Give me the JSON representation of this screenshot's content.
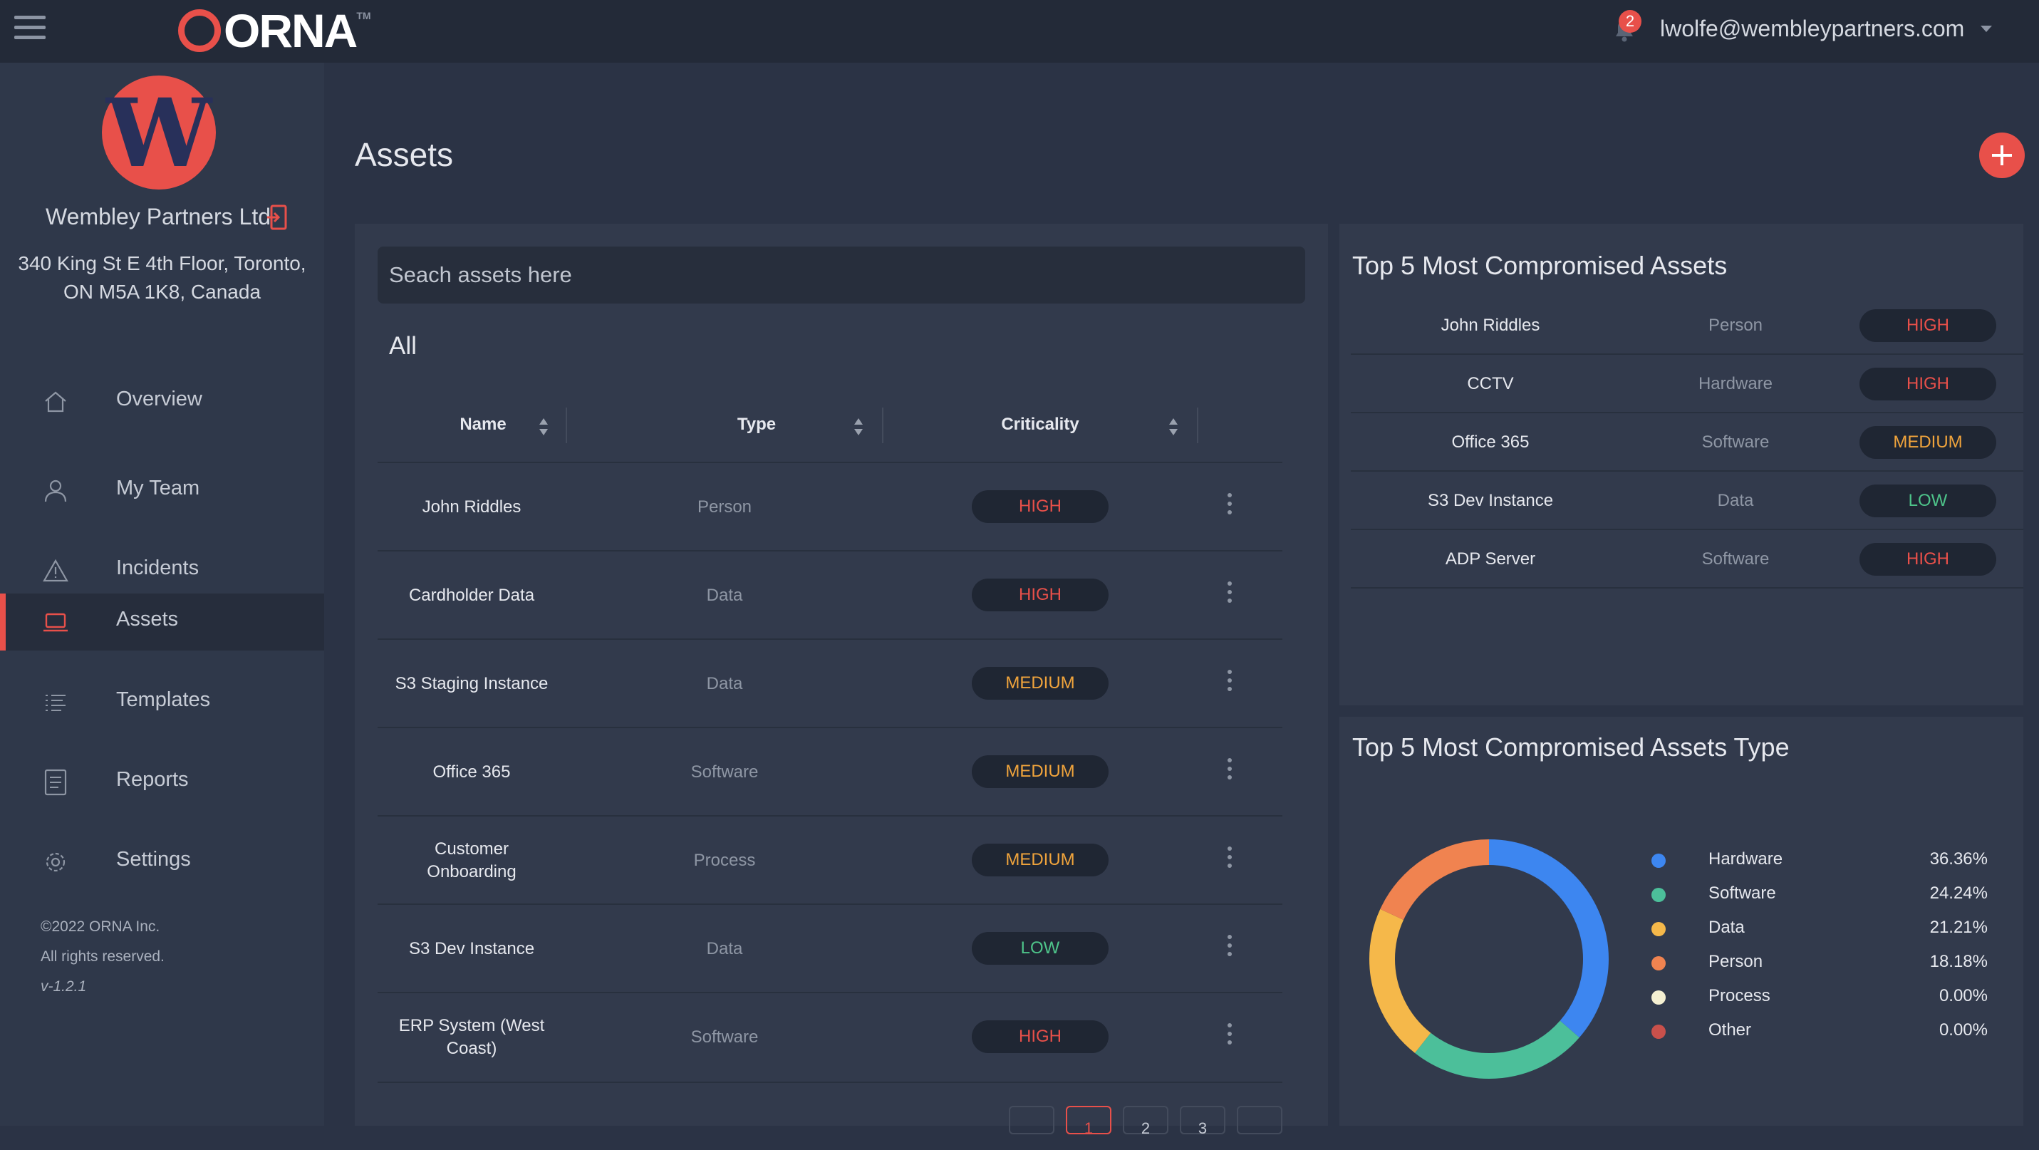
{
  "header": {
    "logo_text": "ORNA",
    "logo_tm": "TM",
    "notification_count": "2",
    "user_email": "lwolfe@wembleypartners.com"
  },
  "sidebar": {
    "company_initial": "W",
    "company_name": "Wembley Partners Ltd",
    "address_line1": "340 King St E 4th Floor, Toronto,",
    "address_line2": "ON M5A 1K8, Canada",
    "items": [
      {
        "label": "Overview",
        "icon": "home-icon"
      },
      {
        "label": "My Team",
        "icon": "user-icon"
      },
      {
        "label": "Incidents",
        "icon": "warning-icon"
      },
      {
        "label": "Assets",
        "icon": "laptop-icon",
        "active": true
      },
      {
        "label": "Templates",
        "icon": "list-icon"
      },
      {
        "label": "Reports",
        "icon": "document-icon"
      },
      {
        "label": "Settings",
        "icon": "gear-icon"
      }
    ],
    "copyright": "©2022 ORNA Inc.",
    "rights": "All rights reserved.",
    "version": "v-1.2.1"
  },
  "main": {
    "title": "Assets",
    "search_placeholder": "Seach assets here",
    "filter_label": "All",
    "columns": [
      "Name",
      "Type",
      "Criticality"
    ],
    "rows": [
      {
        "name": "John Riddles",
        "type": "Person",
        "criticality": "HIGH"
      },
      {
        "name": "Cardholder Data",
        "type": "Data",
        "criticality": "HIGH"
      },
      {
        "name": "S3 Staging Instance",
        "type": "Data",
        "criticality": "MEDIUM"
      },
      {
        "name": "Office 365",
        "type": "Software",
        "criticality": "MEDIUM"
      },
      {
        "name": "Customer Onboarding",
        "type": "Process",
        "criticality": "MEDIUM"
      },
      {
        "name": "S3 Dev Instance",
        "type": "Data",
        "criticality": "LOW"
      },
      {
        "name": "ERP System (West Coast)",
        "type": "Software",
        "criticality": "HIGH"
      }
    ],
    "pagination": [
      "1",
      "2",
      "3"
    ]
  },
  "top5_assets": {
    "title": "Top 5 Most Compromised Assets",
    "rows": [
      {
        "name": "John Riddles",
        "type": "Person",
        "criticality": "HIGH"
      },
      {
        "name": "CCTV",
        "type": "Hardware",
        "criticality": "HIGH"
      },
      {
        "name": "Office 365",
        "type": "Software",
        "criticality": "MEDIUM"
      },
      {
        "name": "S3 Dev Instance",
        "type": "Data",
        "criticality": "LOW"
      },
      {
        "name": "ADP Server",
        "type": "Software",
        "criticality": "HIGH"
      }
    ]
  },
  "top5_types": {
    "title": "Top 5 Most Compromised Assets Type"
  },
  "colors": {
    "accent": "#e8504a",
    "high": "#e8504a",
    "medium": "#f0a43c",
    "low": "#4ec48a"
  },
  "chart_data": {
    "type": "pie",
    "donut": true,
    "categories": [
      "Hardware",
      "Software",
      "Data",
      "Person",
      "Process",
      "Other"
    ],
    "values": [
      36.36,
      24.24,
      21.21,
      18.18,
      0.0,
      0.0
    ],
    "labels": [
      "36.36%",
      "24.24%",
      "21.21%",
      "18.18%",
      "0.00%",
      "0.00%"
    ],
    "colors": [
      "#3d86f0",
      "#4cbf9a",
      "#f5b84a",
      "#f08350",
      "#f5f0d2",
      "#c9504b"
    ],
    "legend": "right"
  }
}
